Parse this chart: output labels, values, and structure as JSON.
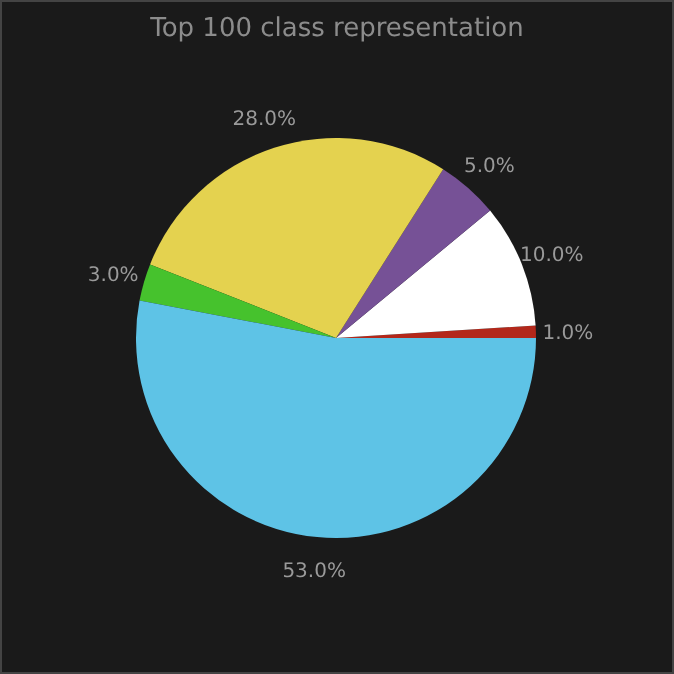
{
  "chart_data": {
    "type": "pie",
    "title": "Top 100 class representation",
    "categories": [
      null,
      null,
      null,
      null,
      null,
      null
    ],
    "values": [
      1,
      10,
      5,
      28,
      3,
      53
    ],
    "value_labels": [
      "1.0%",
      "10.0%",
      "5.0%",
      "28.0%",
      "3.0%",
      "53.0%"
    ],
    "colors": [
      "#b3281b",
      "#ffffff",
      "#765196",
      "#e4d24f",
      "#46c22d",
      "#5ec3e6"
    ]
  }
}
